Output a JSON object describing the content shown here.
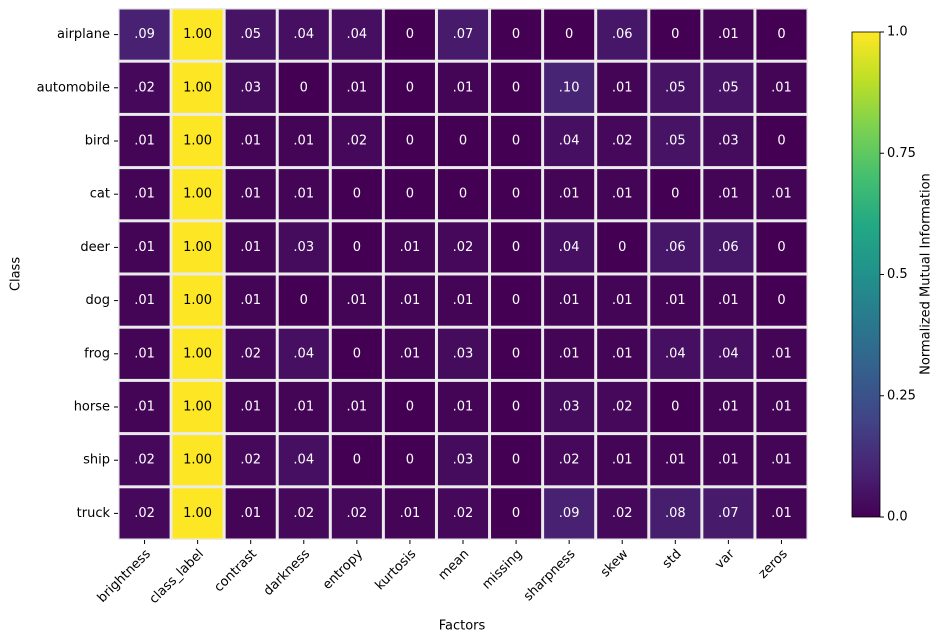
{
  "chart_data": {
    "type": "heatmap",
    "x_label": "Factors",
    "y_label": "Class",
    "colorbar_label": "Normalized Mutual Information",
    "colormap": "viridis",
    "zlim": [
      0,
      1
    ],
    "zticks": [
      {
        "value": 0,
        "label": "0.0"
      },
      0.25,
      0.5,
      0.75,
      {
        "value": 1,
        "label": "1.0"
      }
    ],
    "x_categories": [
      "brightness",
      "class_label",
      "contrast",
      "darkness",
      "entropy",
      "kurtosis",
      "mean",
      "missing",
      "sharpness",
      "skew",
      "std",
      "var",
      "zeros"
    ],
    "y_categories": [
      "airplane",
      "automobile",
      "bird",
      "cat",
      "deer",
      "dog",
      "frog",
      "horse",
      "ship",
      "truck"
    ],
    "values": [
      [
        0.09,
        1,
        0.05,
        0.04,
        0.04,
        0,
        0.07,
        0,
        0,
        0.06,
        0,
        0.01,
        0
      ],
      [
        0.02,
        1,
        0.03,
        0,
        0.01,
        0,
        0.01,
        0,
        0.1,
        0.01,
        0.05,
        0.05,
        0.01
      ],
      [
        0.01,
        1,
        0.01,
        0.01,
        0.02,
        0,
        0,
        0,
        0.04,
        0.02,
        0.05,
        0.03,
        0
      ],
      [
        0.01,
        1,
        0.01,
        0.01,
        0,
        0,
        0,
        0,
        0.01,
        0.01,
        0,
        0.01,
        0.01
      ],
      [
        0.01,
        1,
        0.01,
        0.03,
        0,
        0.01,
        0.02,
        0,
        0.04,
        0,
        0.06,
        0.06,
        0
      ],
      [
        0.01,
        1,
        0.01,
        0,
        0.01,
        0.01,
        0.01,
        0,
        0.01,
        0.01,
        0.01,
        0.01,
        0
      ],
      [
        0.01,
        1,
        0.02,
        0.04,
        0,
        0.01,
        0.03,
        0,
        0.01,
        0.01,
        0.04,
        0.04,
        0.01
      ],
      [
        0.01,
        1,
        0.01,
        0.01,
        0.01,
        0,
        0.01,
        0,
        0.03,
        0.02,
        0,
        0.01,
        0.01
      ],
      [
        0.02,
        1,
        0.02,
        0.04,
        0,
        0,
        0.03,
        0,
        0.02,
        0.01,
        0.01,
        0.01,
        0.01
      ],
      [
        0.02,
        1,
        0.01,
        0.02,
        0.02,
        0.01,
        0.02,
        0,
        0.09,
        0.02,
        0.08,
        0.07,
        0.01
      ]
    ],
    "value_labels": [
      [
        ".09",
        "1.00",
        ".05",
        ".04",
        ".04",
        "0",
        ".07",
        "0",
        "0",
        ".06",
        "0",
        ".01",
        "0"
      ],
      [
        ".02",
        "1.00",
        ".03",
        "0",
        ".01",
        "0",
        ".01",
        "0",
        ".10",
        ".01",
        ".05",
        ".05",
        ".01"
      ],
      [
        ".01",
        "1.00",
        ".01",
        ".01",
        ".02",
        "0",
        "0",
        "0",
        ".04",
        ".02",
        ".05",
        ".03",
        "0"
      ],
      [
        ".01",
        "1.00",
        ".01",
        ".01",
        "0",
        "0",
        "0",
        "0",
        ".01",
        ".01",
        "0",
        ".01",
        ".01"
      ],
      [
        ".01",
        "1.00",
        ".01",
        ".03",
        "0",
        ".01",
        ".02",
        "0",
        ".04",
        "0",
        ".06",
        ".06",
        "0"
      ],
      [
        ".01",
        "1.00",
        ".01",
        "0",
        ".01",
        ".01",
        ".01",
        "0",
        ".01",
        ".01",
        ".01",
        ".01",
        "0"
      ],
      [
        ".01",
        "1.00",
        ".02",
        ".04",
        "0",
        ".01",
        ".03",
        "0",
        ".01",
        ".01",
        ".04",
        ".04",
        ".01"
      ],
      [
        ".01",
        "1.00",
        ".01",
        ".01",
        ".01",
        "0",
        ".01",
        "0",
        ".03",
        ".02",
        "0",
        ".01",
        ".01"
      ],
      [
        ".02",
        "1.00",
        ".02",
        ".04",
        "0",
        "0",
        ".03",
        "0",
        ".02",
        ".01",
        ".01",
        ".01",
        ".01"
      ],
      [
        ".02",
        "1.00",
        ".01",
        ".02",
        ".02",
        ".01",
        ".02",
        "0",
        ".09",
        ".02",
        ".08",
        ".07",
        ".01"
      ]
    ]
  }
}
